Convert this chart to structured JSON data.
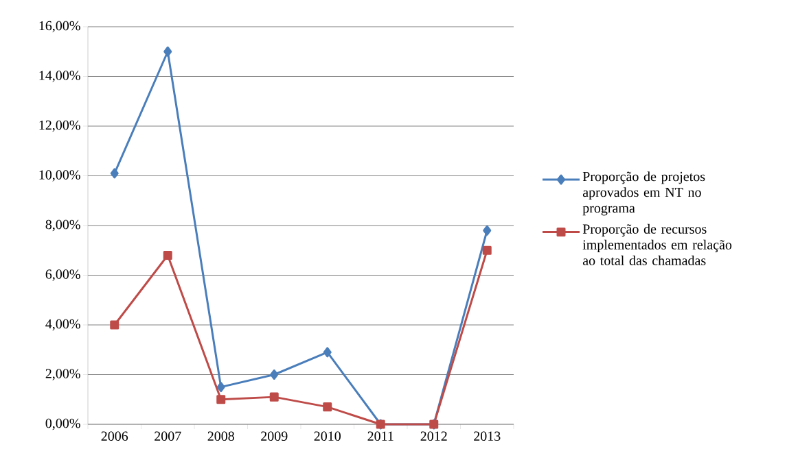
{
  "chart_data": {
    "type": "line",
    "categories": [
      "2006",
      "2007",
      "2008",
      "2009",
      "2010",
      "2011",
      "2012",
      "2013"
    ],
    "series": [
      {
        "name": "Proporção de projetos aprovados em NT no programa",
        "color": "#4a7ebb",
        "marker": "diamond",
        "values": [
          10.1,
          15.0,
          1.5,
          2.0,
          2.9,
          0.0,
          0.0,
          7.8
        ]
      },
      {
        "name": "Proporção de recursos implementados em relação ao total das chamadas",
        "color": "#be4b48",
        "marker": "square",
        "values": [
          4.0,
          6.8,
          1.0,
          1.1,
          0.7,
          0.0,
          0.0,
          7.0
        ]
      }
    ],
    "ylim": [
      0,
      16
    ],
    "yticks": [
      {
        "value": 0,
        "label": "0,00%"
      },
      {
        "value": 2,
        "label": "2,00%"
      },
      {
        "value": 4,
        "label": "4,00%"
      },
      {
        "value": 6,
        "label": "6,00%"
      },
      {
        "value": 8,
        "label": "8,00%"
      },
      {
        "value": 10,
        "label": "10,00%"
      },
      {
        "value": 12,
        "label": "12,00%"
      },
      {
        "value": 14,
        "label": "14,00%"
      },
      {
        "value": 16,
        "label": "16,00%"
      }
    ],
    "grid": "y",
    "legend": "right"
  }
}
